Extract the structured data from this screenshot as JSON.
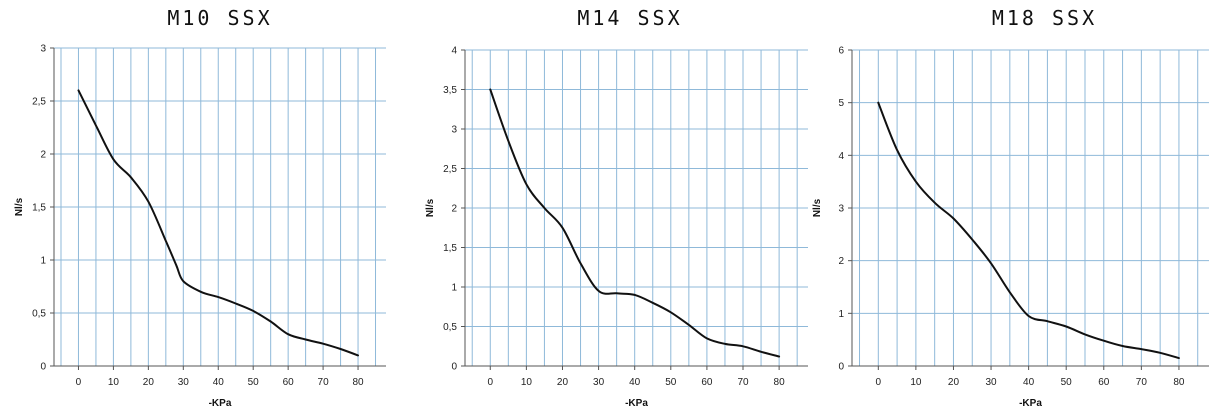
{
  "chart_data": [
    {
      "type": "line",
      "title": "M10 SSX",
      "xlabel": "-KPa",
      "ylabel": "Nl/s",
      "xlim": [
        -7,
        88
      ],
      "ylim": [
        0,
        3
      ],
      "xticks": [
        0,
        10,
        20,
        30,
        40,
        50,
        60,
        70,
        80
      ],
      "xtick_labels": [
        "0",
        "10",
        "20",
        "30",
        "40",
        "50",
        "60",
        "70",
        "80"
      ],
      "yticks": [
        0,
        0.5,
        1,
        1.5,
        2,
        2.5,
        3
      ],
      "ytick_labels": [
        "0",
        "0,5",
        "1",
        "1,5",
        "2",
        "2,5",
        "3"
      ],
      "grid": true,
      "series": [
        {
          "x": [
            0,
            5,
            10,
            15,
            20,
            25,
            28,
            30,
            35,
            40,
            45,
            50,
            55,
            60,
            65,
            70,
            75,
            80
          ],
          "y": [
            2.6,
            2.27,
            1.95,
            1.78,
            1.55,
            1.18,
            0.95,
            0.8,
            0.7,
            0.65,
            0.59,
            0.52,
            0.42,
            0.3,
            0.25,
            0.21,
            0.16,
            0.1
          ]
        }
      ]
    },
    {
      "type": "line",
      "title": "M14 SSX",
      "xlabel": "-KPa",
      "ylabel": "Nl/s",
      "xlim": [
        -7,
        88
      ],
      "ylim": [
        0,
        4
      ],
      "xticks": [
        0,
        10,
        20,
        30,
        40,
        50,
        60,
        70,
        80
      ],
      "xtick_labels": [
        "0",
        "10",
        "20",
        "30",
        "40",
        "50",
        "60",
        "70",
        "80"
      ],
      "yticks": [
        0,
        0.5,
        1,
        1.5,
        2,
        2.5,
        3,
        3.5,
        4
      ],
      "ytick_labels": [
        "0",
        "0,5",
        "1",
        "1,5",
        "2",
        "2,5",
        "3",
        "3,5",
        "4"
      ],
      "grid": true,
      "series": [
        {
          "x": [
            0,
            5,
            10,
            15,
            20,
            25,
            30,
            35,
            40,
            45,
            50,
            55,
            60,
            65,
            70,
            75,
            80
          ],
          "y": [
            3.5,
            2.85,
            2.3,
            2.0,
            1.75,
            1.3,
            0.95,
            0.92,
            0.9,
            0.8,
            0.68,
            0.52,
            0.35,
            0.28,
            0.25,
            0.18,
            0.12
          ]
        }
      ]
    },
    {
      "type": "line",
      "title": "M18 SSX",
      "xlabel": "-KPa",
      "ylabel": "Nl/s",
      "xlim": [
        -7,
        88
      ],
      "ylim": [
        0,
        6
      ],
      "xticks": [
        0,
        10,
        20,
        30,
        40,
        50,
        60,
        70,
        80
      ],
      "xtick_labels": [
        "0",
        "10",
        "20",
        "30",
        "40",
        "50",
        "60",
        "70",
        "80"
      ],
      "yticks": [
        0,
        1,
        2,
        3,
        4,
        5,
        6
      ],
      "ytick_labels": [
        "0",
        "1",
        "2",
        "3",
        "4",
        "5",
        "6"
      ],
      "grid": true,
      "series": [
        {
          "x": [
            0,
            5,
            10,
            15,
            20,
            25,
            30,
            35,
            40,
            45,
            50,
            55,
            60,
            65,
            70,
            75,
            80
          ],
          "y": [
            5.0,
            4.1,
            3.5,
            3.1,
            2.8,
            2.4,
            1.95,
            1.4,
            0.95,
            0.85,
            0.75,
            0.6,
            0.48,
            0.38,
            0.32,
            0.25,
            0.15
          ]
        }
      ]
    }
  ]
}
